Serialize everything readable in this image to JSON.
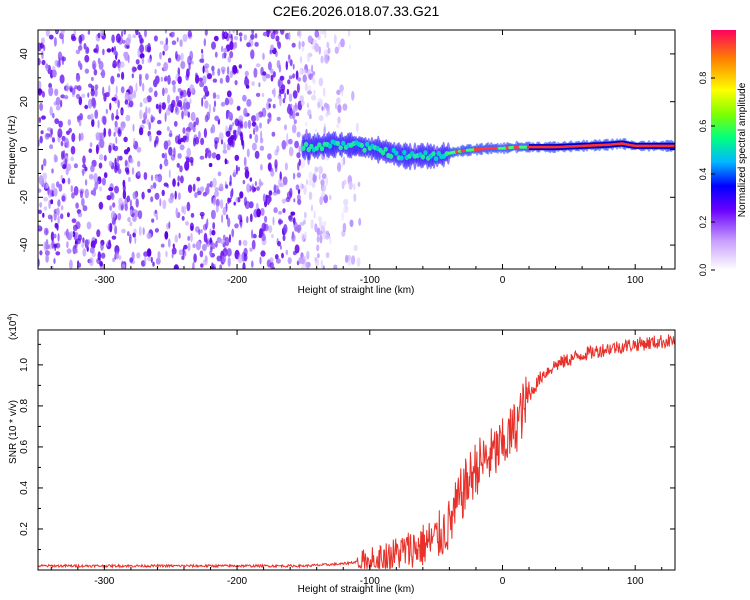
{
  "title": "C2E6.2026.018.07.33.G21",
  "chart_data": [
    {
      "type": "heatmap",
      "name": "spectrogram",
      "xlabel": "Height of straight line (km)",
      "ylabel": "Frequency (Hz)",
      "xlim": [
        -350,
        130
      ],
      "ylim": [
        -50,
        50
      ],
      "xticks": [
        -300,
        -200,
        -100,
        0,
        100
      ],
      "yticks": [
        -40,
        -20,
        0,
        20,
        40
      ],
      "noise_region_km": [
        -350,
        -130
      ],
      "signal_trace": {
        "x": [
          -150,
          -140,
          -130,
          -120,
          -110,
          -100,
          -90,
          -80,
          -70,
          -60,
          -50,
          -40,
          -30,
          -20,
          -10,
          0,
          10,
          20,
          40,
          60,
          80,
          90,
          100,
          130
        ],
        "y": [
          1,
          1.5,
          2,
          2,
          1.5,
          0.5,
          -0.5,
          -2,
          -3,
          -2.5,
          -3,
          -1.5,
          -0.5,
          0,
          0.5,
          0.5,
          1,
          1,
          1,
          1.5,
          2,
          2.5,
          1.5,
          1.5
        ]
      },
      "colorbar": {
        "label": "Normalized spectral amplitude",
        "range": [
          0,
          1
        ],
        "ticks": [
          0.0,
          0.2,
          0.4,
          0.6,
          0.8
        ],
        "tick_labels": [
          "0.0",
          "0.2",
          "0.4",
          "0.6",
          "0.8"
        ]
      }
    },
    {
      "type": "line",
      "name": "snr",
      "xlabel": "Height of straight line (km)",
      "ylabel": "SNR (10 * v/v)",
      "scale_label": "(x10",
      "scale_exp": "4",
      "scale_close": ")",
      "xlim": [
        -350,
        130
      ],
      "ylim": [
        0,
        1.17
      ],
      "xticks": [
        -300,
        -200,
        -100,
        0,
        100
      ],
      "yticks": [
        0.2,
        0.4,
        0.6,
        0.8,
        1.0
      ],
      "ytick_labels": [
        "0.2",
        "0.4",
        "0.6",
        "0.8",
        "1.0"
      ],
      "color": "#e8312a",
      "series": {
        "name": "SNR",
        "x": [
          -350,
          -300,
          -250,
          -200,
          -150,
          -120,
          -100,
          -90,
          -80,
          -70,
          -60,
          -50,
          -40,
          -30,
          -20,
          -10,
          0,
          10,
          20,
          30,
          40,
          60,
          80,
          100,
          130
        ],
        "values": [
          0.02,
          0.02,
          0.02,
          0.02,
          0.02,
          0.03,
          0.05,
          0.06,
          0.08,
          0.1,
          0.12,
          0.15,
          0.22,
          0.38,
          0.5,
          0.55,
          0.6,
          0.7,
          0.85,
          0.95,
          1.0,
          1.05,
          1.08,
          1.1,
          1.12
        ]
      }
    }
  ]
}
